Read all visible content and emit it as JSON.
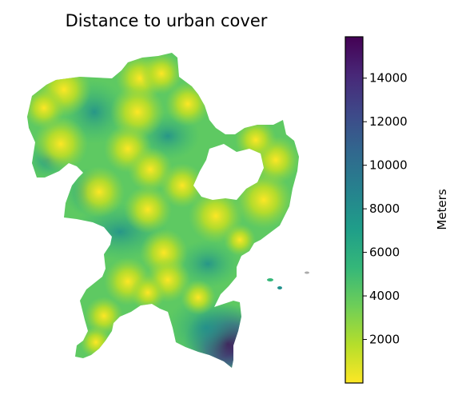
{
  "chart_data": {
    "type": "heatmap",
    "title": "Distance to urban cover",
    "colorbar": {
      "label": "Meters",
      "range": [
        0,
        15900
      ],
      "ticks": [
        2000,
        4000,
        6000,
        8000,
        10000,
        12000,
        14000
      ],
      "tick_labels": [
        "2000",
        "4000",
        "6000",
        "8000",
        "10000",
        "12000",
        "14000"
      ],
      "colormap": "viridis_r",
      "colormap_stops": [
        "#fde725",
        "#b5de2b",
        "#6ece58",
        "#35b779",
        "#1f9e89",
        "#26828e",
        "#31688e",
        "#3e4989",
        "#482878",
        "#440154"
      ]
    },
    "axes_visible": false
  }
}
